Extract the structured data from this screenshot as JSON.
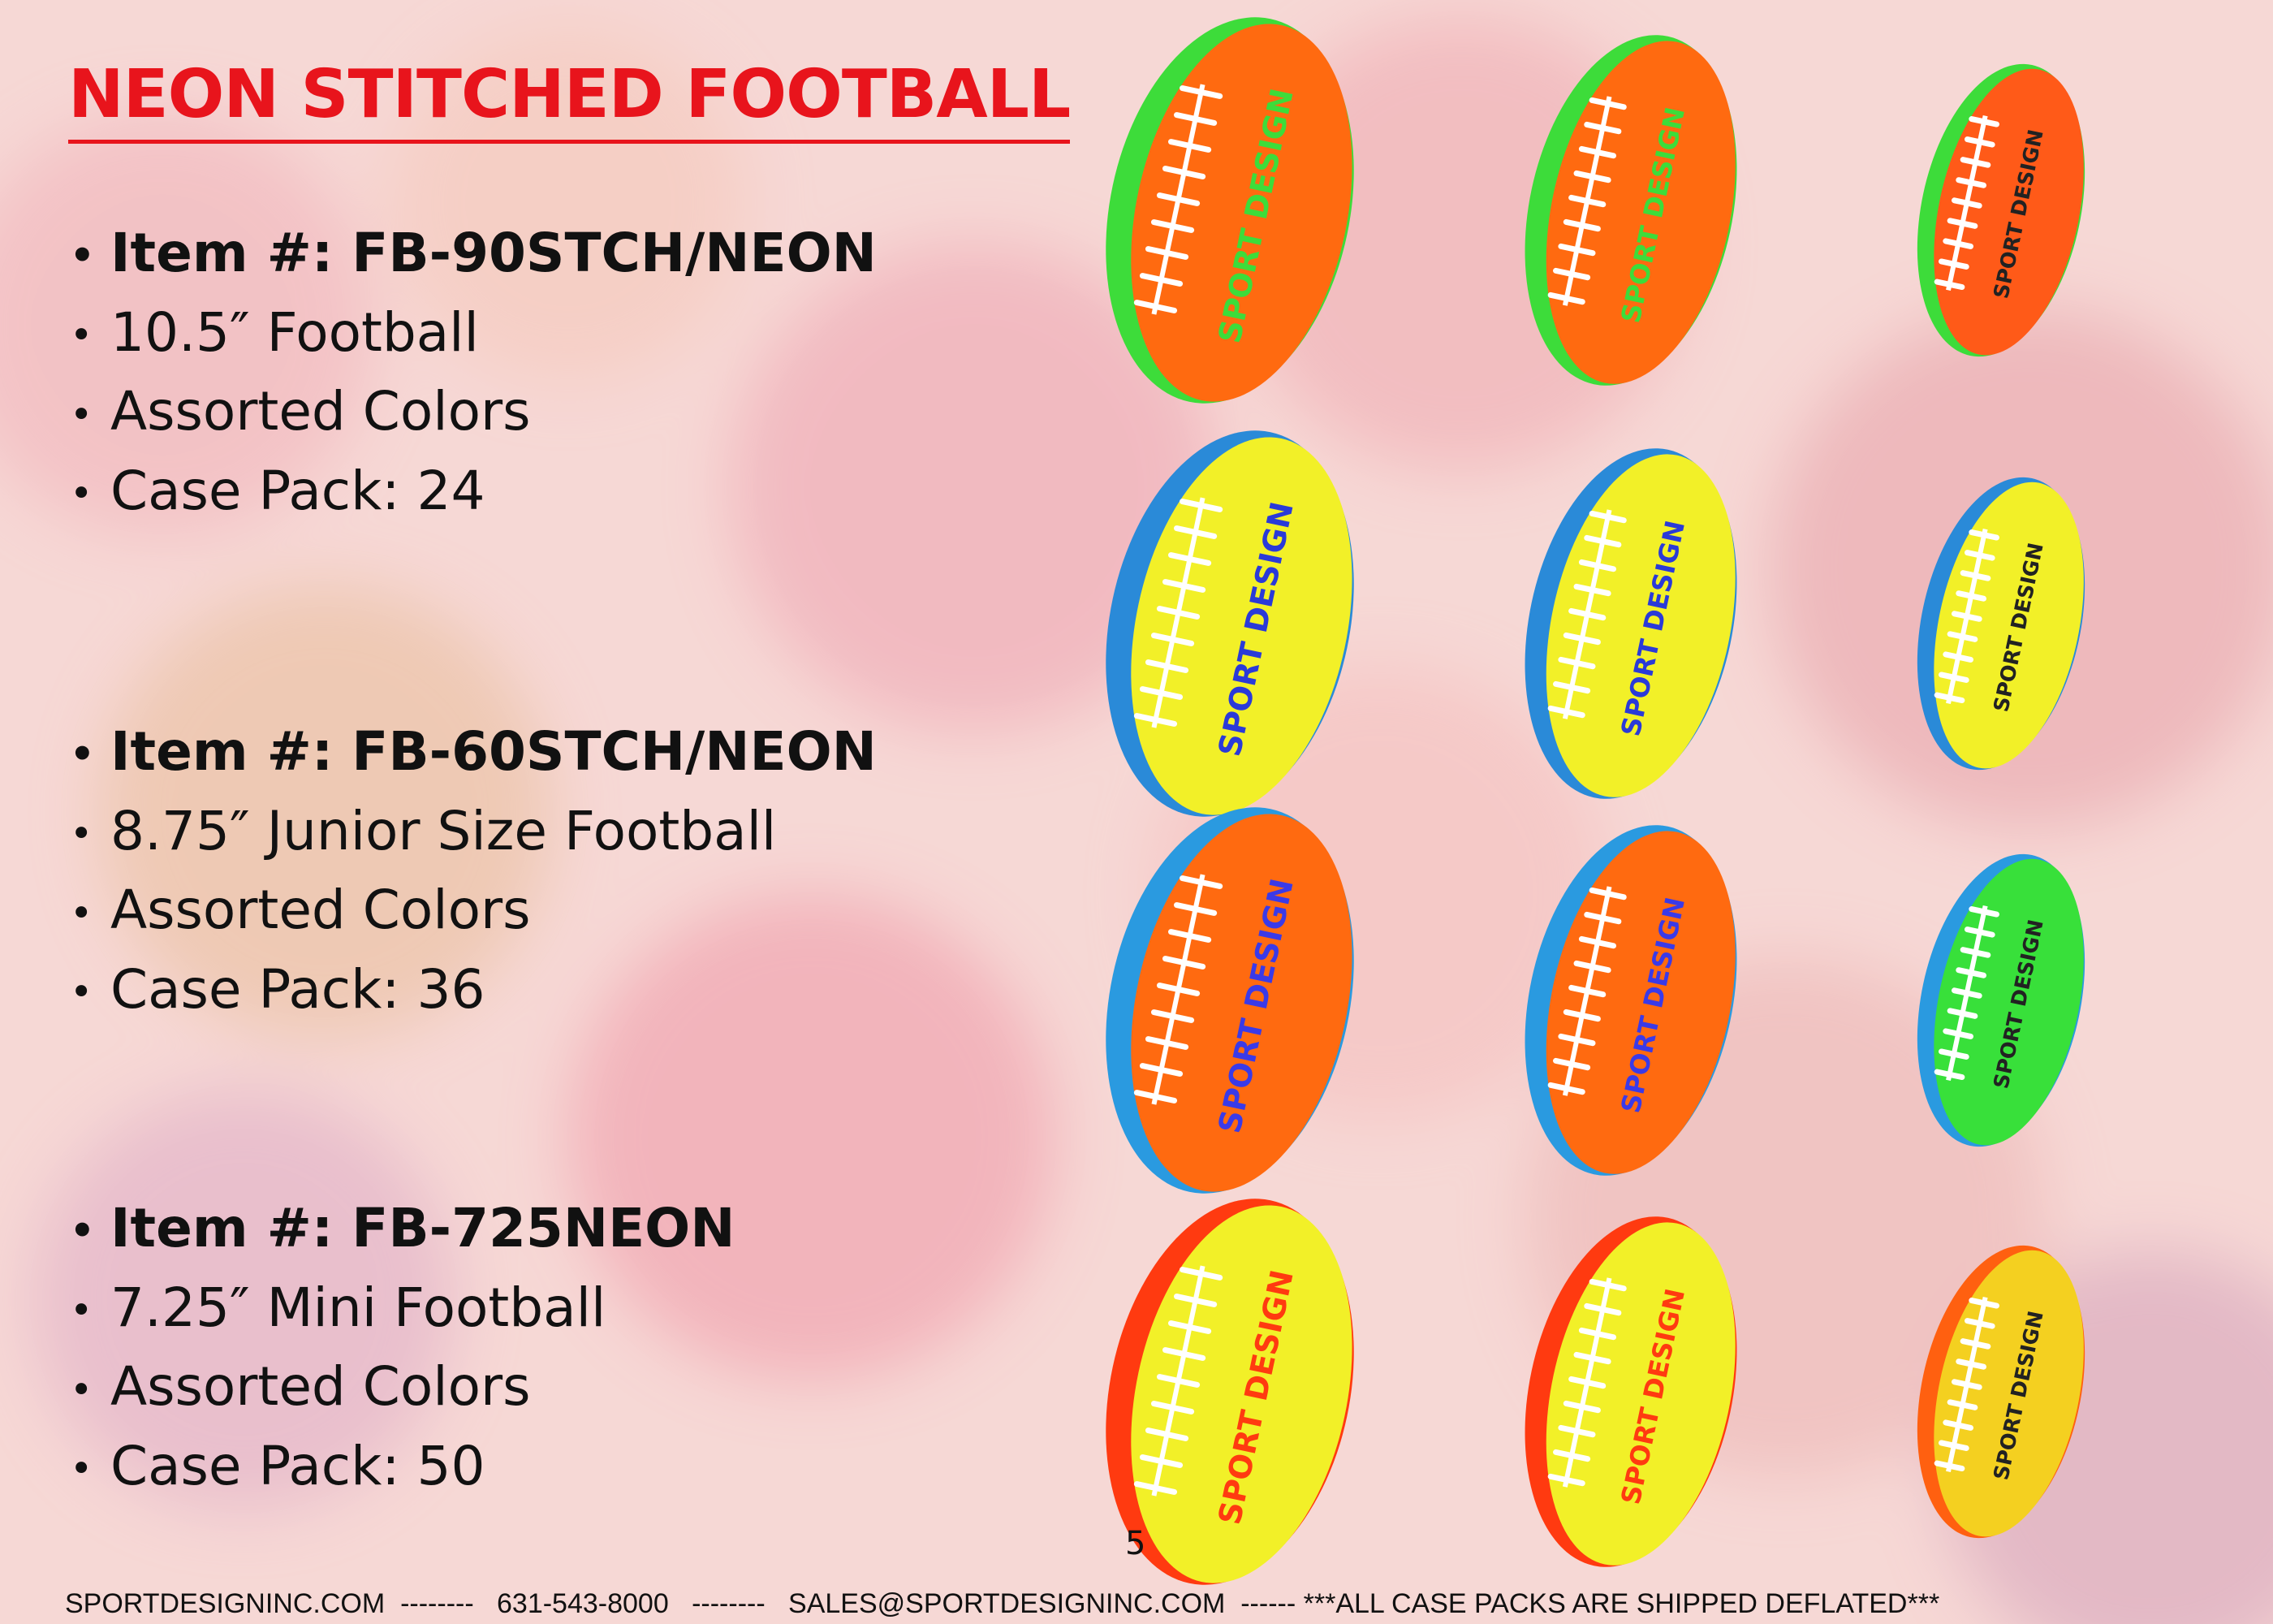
{
  "header": {
    "title": "NEON STITCHED FOOTBALL"
  },
  "items": [
    {
      "item": "Item #: FB-90STCH/NEON",
      "size": "10.5″ Football",
      "colors": "Assorted Colors",
      "case_pack": "Case Pack: 24"
    },
    {
      "item": "Item #: FB-60STCH/NEON",
      "size": "8.75″ Junior Size Football",
      "colors": "Assorted Colors",
      "case_pack": "Case Pack: 36"
    },
    {
      "item": "Item #: FB-725NEON",
      "size": "7.25″ Mini Football",
      "colors": "Assorted Colors",
      "case_pack": "Case Pack: 50"
    }
  ],
  "ball_logo": "SPORT DESIGN",
  "page_number": "5",
  "footer": {
    "website": "SPORTDESIGNINC.COM",
    "phone": "631-543-8000",
    "email": "SALES@SPORTDESIGNINC.COM",
    "note": "***ALL CASE PACKS ARE SHIPPED DEFLATED***"
  }
}
